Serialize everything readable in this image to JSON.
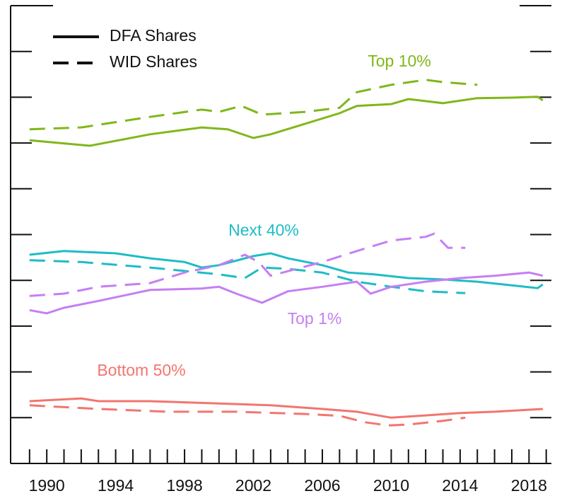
{
  "chart_data": {
    "type": "line",
    "xlim": [
      1987.9,
      2019.3
    ],
    "xticks": [
      1990,
      1994,
      1998,
      2002,
      2006,
      2010,
      2014,
      2018
    ],
    "xminorticks": [
      1989,
      1990,
      1991,
      1992,
      1993,
      1994,
      1995,
      1996,
      1997,
      1998,
      1999,
      2000,
      2001,
      2002,
      2003,
      2004,
      2005,
      2006,
      2007,
      2008,
      2009,
      2010,
      2011,
      2012,
      2013,
      2014,
      2015,
      2016,
      2017,
      2018,
      2019
    ],
    "ylim": [
      0,
      100
    ],
    "yticks": [
      0,
      10,
      20,
      30,
      40,
      50,
      60,
      70,
      80,
      90,
      100
    ],
    "legend": [
      {
        "label": "DFA Shares",
        "style": "solid"
      },
      {
        "label": "WID Shares",
        "style": "dashed"
      }
    ],
    "groups": [
      {
        "name": "Top 10%",
        "color": "#80b71a",
        "lines": [
          {
            "style": "solid",
            "x": [
              1989,
              1992.5,
              1996,
              1999,
              2000.5,
              2002,
              2003,
              2005,
              2007,
              2008,
              2010,
              2011,
              2013,
              2015,
              2017,
              2018.5,
              2018.8
            ],
            "values": [
              70.6,
              69.4,
              71.9,
              73.4,
              73.0,
              71.1,
              71.9,
              74.2,
              76.5,
              78.1,
              78.5,
              79.6,
              78.7,
              79.8,
              79.9,
              80.1,
              79.3
            ]
          },
          {
            "style": "dashed",
            "x": [
              1989,
              1992,
              1996,
              1999,
              2000,
              2001.3,
              2002.5,
              2005,
              2007,
              2008,
              2010,
              2012,
              2013,
              2015
            ],
            "values": [
              73.0,
              73.4,
              75.7,
              77.3,
              76.8,
              78.1,
              76.2,
              76.8,
              77.7,
              81.1,
              82.7,
              83.8,
              83.3,
              82.7
            ]
          }
        ]
      },
      {
        "name": "Next 40%",
        "color": "#1ebcc6",
        "lines": [
          {
            "style": "solid",
            "x": [
              1989,
              1991,
              1994,
              1996,
              1998,
              1999,
              2000,
              2002,
              2003,
              2004,
              2006,
              2007.5,
              2009,
              2011,
              2013,
              2015,
              2017,
              2018.5,
              2018.8
            ],
            "values": [
              45.6,
              46.4,
              45.9,
              44.8,
              44.0,
              42.8,
              43.3,
              45.3,
              45.9,
              44.8,
              43.3,
              41.7,
              41.3,
              40.5,
              40.2,
              39.7,
              38.9,
              38.3,
              39.1
            ]
          },
          {
            "style": "dashed",
            "x": [
              1989,
              1992,
              1996,
              2000,
              2001.5,
              2002.5,
              2004,
              2006,
              2008,
              2010,
              2012,
              2014.3
            ],
            "values": [
              44.4,
              44.0,
              42.8,
              41.3,
              40.5,
              42.8,
              42.5,
              41.7,
              39.7,
              38.6,
              37.6,
              37.2
            ]
          }
        ]
      },
      {
        "name": "Top 1%",
        "color": "#c67ff2",
        "lines": [
          {
            "style": "solid",
            "x": [
              1989,
              1990,
              1991,
              1993,
              1996,
              1999,
              2000,
              2001,
              2002.5,
              2004,
              2006,
              2008,
              2008.8,
              2010,
              2012,
              2014,
              2016,
              2018,
              2018.8
            ],
            "values": [
              33.5,
              32.8,
              34.0,
              35.5,
              37.9,
              38.2,
              38.6,
              37.1,
              35.1,
              37.6,
              38.6,
              39.7,
              37.1,
              38.6,
              39.7,
              40.5,
              41.0,
              41.7,
              41.0
            ]
          },
          {
            "style": "dashed",
            "x": [
              1989,
              1991,
              1993,
              1996,
              1998,
              2000,
              2001.5,
              2002.3,
              2003,
              2004,
              2006,
              2008,
              2010,
              2012,
              2012.5,
              2013.3,
              2014.3
            ],
            "values": [
              36.6,
              37.1,
              38.6,
              39.4,
              41.7,
              43.3,
              45.6,
              44.0,
              41.0,
              42.0,
              44.0,
              46.4,
              48.7,
              49.5,
              50.2,
              47.1,
              47.1
            ]
          }
        ]
      },
      {
        "name": "Bottom 50%",
        "color": "#f2756f",
        "lines": [
          {
            "style": "solid",
            "x": [
              1989,
              1992,
              1993,
              1996,
              2000,
              2003,
              2006,
              2008,
              2010,
              2012,
              2014,
              2016,
              2018.8
            ],
            "values": [
              13.6,
              14.2,
              13.6,
              13.6,
              13.1,
              12.7,
              11.9,
              11.3,
              10.0,
              10.5,
              11.0,
              11.3,
              11.9
            ]
          },
          {
            "style": "dashed",
            "x": [
              1989,
              1993,
              1997,
              2001,
              2005,
              2007,
              2008.5,
              2009.8,
              2011,
              2013,
              2014.3
            ],
            "values": [
              12.7,
              11.9,
              11.3,
              11.3,
              10.8,
              10.4,
              9.0,
              8.3,
              8.5,
              9.3,
              10.0
            ]
          }
        ]
      }
    ]
  }
}
